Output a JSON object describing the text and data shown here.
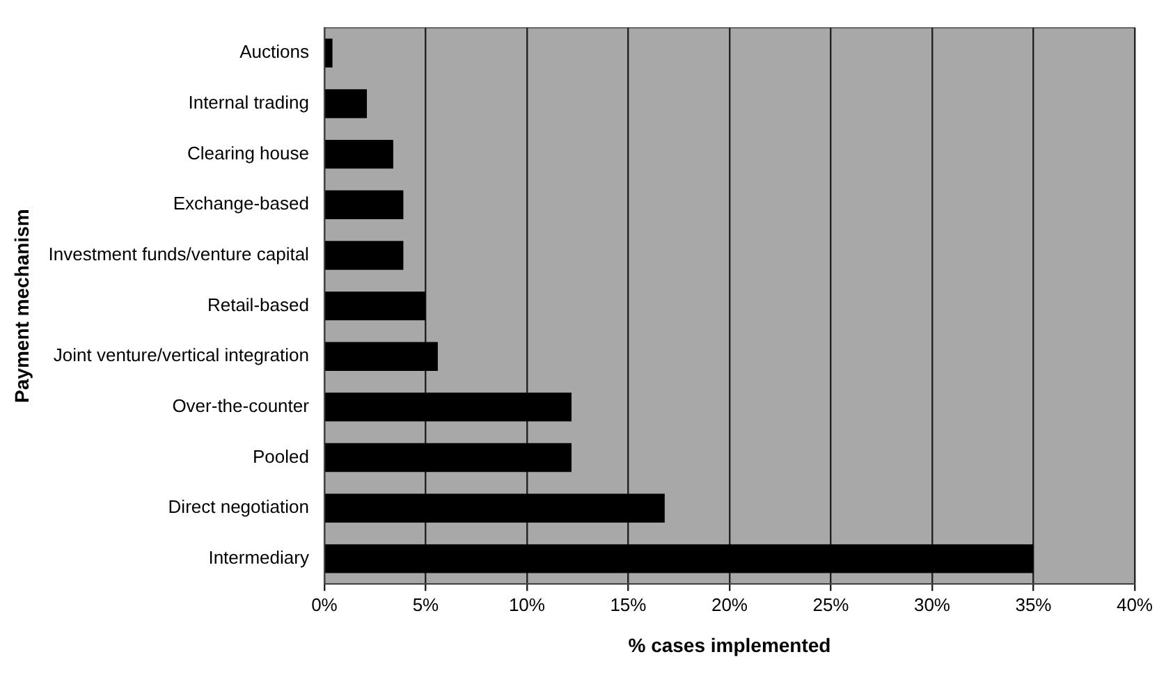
{
  "chart_data": {
    "type": "bar",
    "orientation": "horizontal",
    "xlabel": "% cases implemented",
    "ylabel": "Payment mechanism",
    "categories": [
      "Auctions",
      "Internal trading",
      "Clearing house",
      "Exchange-based",
      "Investment funds/venture capital",
      "Retail-based",
      "Joint venture/vertical integration",
      "Over-the-counter",
      "Pooled",
      "Direct negotiation",
      "Intermediary"
    ],
    "values": [
      0.4,
      2.1,
      3.4,
      3.9,
      3.9,
      5.0,
      5.6,
      12.2,
      12.2,
      16.8,
      35
    ],
    "color": "#000000",
    "xlim": [
      0,
      40
    ],
    "xticks": [
      {
        "value": 0,
        "label": "0%"
      },
      {
        "value": 5,
        "label": "5%"
      },
      {
        "value": 10,
        "label": "10%"
      },
      {
        "value": 15,
        "label": "15%"
      },
      {
        "value": 20,
        "label": "20%"
      },
      {
        "value": 25,
        "label": "25%"
      },
      {
        "value": 30,
        "label": "30%"
      },
      {
        "value": 35,
        "label": "35%"
      },
      {
        "value": 40,
        "label": "40%"
      }
    ],
    "grid": "x",
    "legend": false
  }
}
